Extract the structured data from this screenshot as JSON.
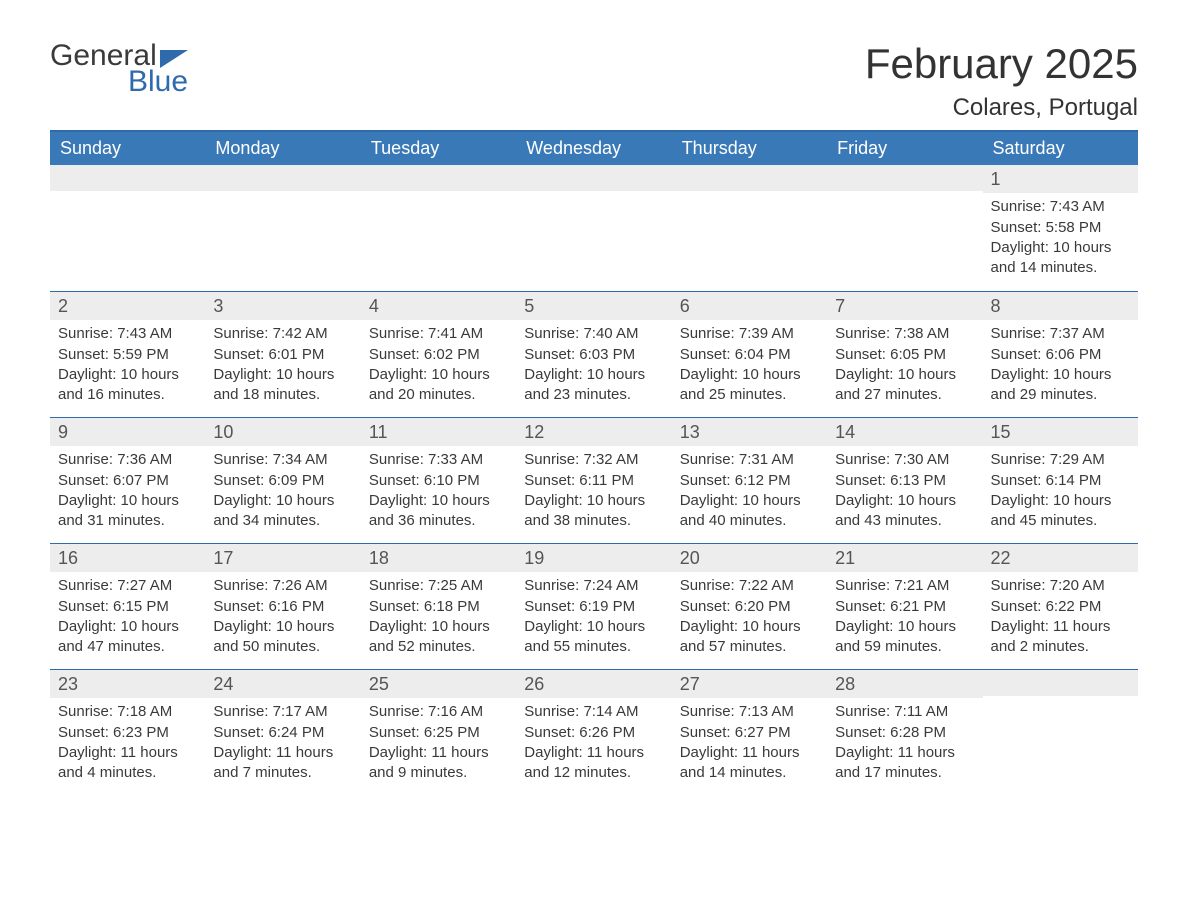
{
  "logo": {
    "word1": "General",
    "word2": "Blue"
  },
  "title": {
    "month": "February 2025",
    "location": "Colares, Portugal"
  },
  "colors": {
    "header_bg": "#3a79b7",
    "border": "#2f6aad",
    "daybar_bg": "#ededed",
    "text": "#333333",
    "white": "#ffffff"
  },
  "weekdays": [
    "Sunday",
    "Monday",
    "Tuesday",
    "Wednesday",
    "Thursday",
    "Friday",
    "Saturday"
  ],
  "weeks": [
    [
      {},
      {},
      {},
      {},
      {},
      {},
      {
        "n": "1",
        "sunrise": "Sunrise: 7:43 AM",
        "sunset": "Sunset: 5:58 PM",
        "day1": "Daylight: 10 hours",
        "day2": "and 14 minutes."
      }
    ],
    [
      {
        "n": "2",
        "sunrise": "Sunrise: 7:43 AM",
        "sunset": "Sunset: 5:59 PM",
        "day1": "Daylight: 10 hours",
        "day2": "and 16 minutes."
      },
      {
        "n": "3",
        "sunrise": "Sunrise: 7:42 AM",
        "sunset": "Sunset: 6:01 PM",
        "day1": "Daylight: 10 hours",
        "day2": "and 18 minutes."
      },
      {
        "n": "4",
        "sunrise": "Sunrise: 7:41 AM",
        "sunset": "Sunset: 6:02 PM",
        "day1": "Daylight: 10 hours",
        "day2": "and 20 minutes."
      },
      {
        "n": "5",
        "sunrise": "Sunrise: 7:40 AM",
        "sunset": "Sunset: 6:03 PM",
        "day1": "Daylight: 10 hours",
        "day2": "and 23 minutes."
      },
      {
        "n": "6",
        "sunrise": "Sunrise: 7:39 AM",
        "sunset": "Sunset: 6:04 PM",
        "day1": "Daylight: 10 hours",
        "day2": "and 25 minutes."
      },
      {
        "n": "7",
        "sunrise": "Sunrise: 7:38 AM",
        "sunset": "Sunset: 6:05 PM",
        "day1": "Daylight: 10 hours",
        "day2": "and 27 minutes."
      },
      {
        "n": "8",
        "sunrise": "Sunrise: 7:37 AM",
        "sunset": "Sunset: 6:06 PM",
        "day1": "Daylight: 10 hours",
        "day2": "and 29 minutes."
      }
    ],
    [
      {
        "n": "9",
        "sunrise": "Sunrise: 7:36 AM",
        "sunset": "Sunset: 6:07 PM",
        "day1": "Daylight: 10 hours",
        "day2": "and 31 minutes."
      },
      {
        "n": "10",
        "sunrise": "Sunrise: 7:34 AM",
        "sunset": "Sunset: 6:09 PM",
        "day1": "Daylight: 10 hours",
        "day2": "and 34 minutes."
      },
      {
        "n": "11",
        "sunrise": "Sunrise: 7:33 AM",
        "sunset": "Sunset: 6:10 PM",
        "day1": "Daylight: 10 hours",
        "day2": "and 36 minutes."
      },
      {
        "n": "12",
        "sunrise": "Sunrise: 7:32 AM",
        "sunset": "Sunset: 6:11 PM",
        "day1": "Daylight: 10 hours",
        "day2": "and 38 minutes."
      },
      {
        "n": "13",
        "sunrise": "Sunrise: 7:31 AM",
        "sunset": "Sunset: 6:12 PM",
        "day1": "Daylight: 10 hours",
        "day2": "and 40 minutes."
      },
      {
        "n": "14",
        "sunrise": "Sunrise: 7:30 AM",
        "sunset": "Sunset: 6:13 PM",
        "day1": "Daylight: 10 hours",
        "day2": "and 43 minutes."
      },
      {
        "n": "15",
        "sunrise": "Sunrise: 7:29 AM",
        "sunset": "Sunset: 6:14 PM",
        "day1": "Daylight: 10 hours",
        "day2": "and 45 minutes."
      }
    ],
    [
      {
        "n": "16",
        "sunrise": "Sunrise: 7:27 AM",
        "sunset": "Sunset: 6:15 PM",
        "day1": "Daylight: 10 hours",
        "day2": "and 47 minutes."
      },
      {
        "n": "17",
        "sunrise": "Sunrise: 7:26 AM",
        "sunset": "Sunset: 6:16 PM",
        "day1": "Daylight: 10 hours",
        "day2": "and 50 minutes."
      },
      {
        "n": "18",
        "sunrise": "Sunrise: 7:25 AM",
        "sunset": "Sunset: 6:18 PM",
        "day1": "Daylight: 10 hours",
        "day2": "and 52 minutes."
      },
      {
        "n": "19",
        "sunrise": "Sunrise: 7:24 AM",
        "sunset": "Sunset: 6:19 PM",
        "day1": "Daylight: 10 hours",
        "day2": "and 55 minutes."
      },
      {
        "n": "20",
        "sunrise": "Sunrise: 7:22 AM",
        "sunset": "Sunset: 6:20 PM",
        "day1": "Daylight: 10 hours",
        "day2": "and 57 minutes."
      },
      {
        "n": "21",
        "sunrise": "Sunrise: 7:21 AM",
        "sunset": "Sunset: 6:21 PM",
        "day1": "Daylight: 10 hours",
        "day2": "and 59 minutes."
      },
      {
        "n": "22",
        "sunrise": "Sunrise: 7:20 AM",
        "sunset": "Sunset: 6:22 PM",
        "day1": "Daylight: 11 hours",
        "day2": "and 2 minutes."
      }
    ],
    [
      {
        "n": "23",
        "sunrise": "Sunrise: 7:18 AM",
        "sunset": "Sunset: 6:23 PM",
        "day1": "Daylight: 11 hours",
        "day2": "and 4 minutes."
      },
      {
        "n": "24",
        "sunrise": "Sunrise: 7:17 AM",
        "sunset": "Sunset: 6:24 PM",
        "day1": "Daylight: 11 hours",
        "day2": "and 7 minutes."
      },
      {
        "n": "25",
        "sunrise": "Sunrise: 7:16 AM",
        "sunset": "Sunset: 6:25 PM",
        "day1": "Daylight: 11 hours",
        "day2": "and 9 minutes."
      },
      {
        "n": "26",
        "sunrise": "Sunrise: 7:14 AM",
        "sunset": "Sunset: 6:26 PM",
        "day1": "Daylight: 11 hours",
        "day2": "and 12 minutes."
      },
      {
        "n": "27",
        "sunrise": "Sunrise: 7:13 AM",
        "sunset": "Sunset: 6:27 PM",
        "day1": "Daylight: 11 hours",
        "day2": "and 14 minutes."
      },
      {
        "n": "28",
        "sunrise": "Sunrise: 7:11 AM",
        "sunset": "Sunset: 6:28 PM",
        "day1": "Daylight: 11 hours",
        "day2": "and 17 minutes."
      },
      {}
    ]
  ]
}
